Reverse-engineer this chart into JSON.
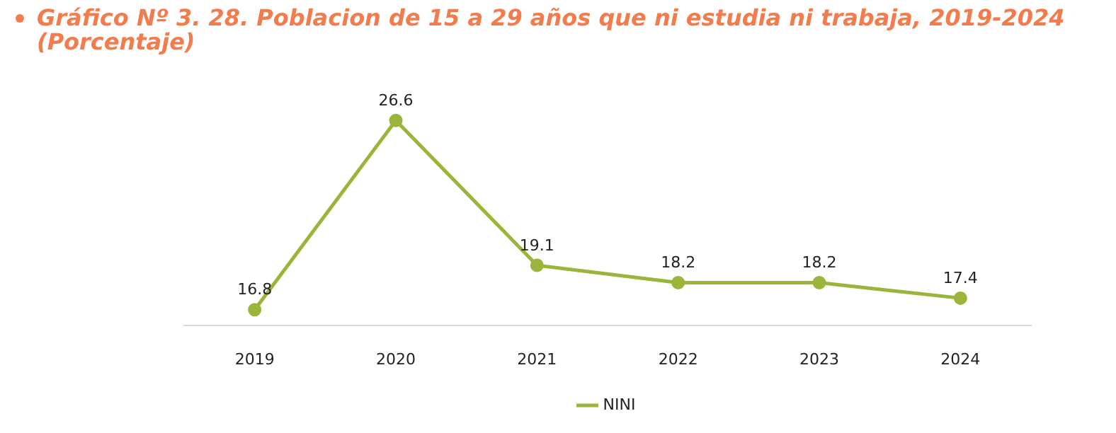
{
  "chart_data": {
    "type": "line",
    "title": "Gráfico Nº 3. 28. Poblacion de 15 a 29 años que ni estudia ni trabaja, 2019-2024\n(Porcentaje)",
    "categories": [
      "2019",
      "2020",
      "2021",
      "2022",
      "2023",
      "2024"
    ],
    "series": [
      {
        "name": "NINI",
        "color": "#9bb53a",
        "values": [
          16.8,
          26.6,
          19.1,
          18.2,
          18.2,
          17.4
        ]
      }
    ],
    "tick_labels": "x",
    "data_labels": true,
    "grid": false,
    "legend": "bottom",
    "marker": "circle",
    "line_style": "solid"
  }
}
